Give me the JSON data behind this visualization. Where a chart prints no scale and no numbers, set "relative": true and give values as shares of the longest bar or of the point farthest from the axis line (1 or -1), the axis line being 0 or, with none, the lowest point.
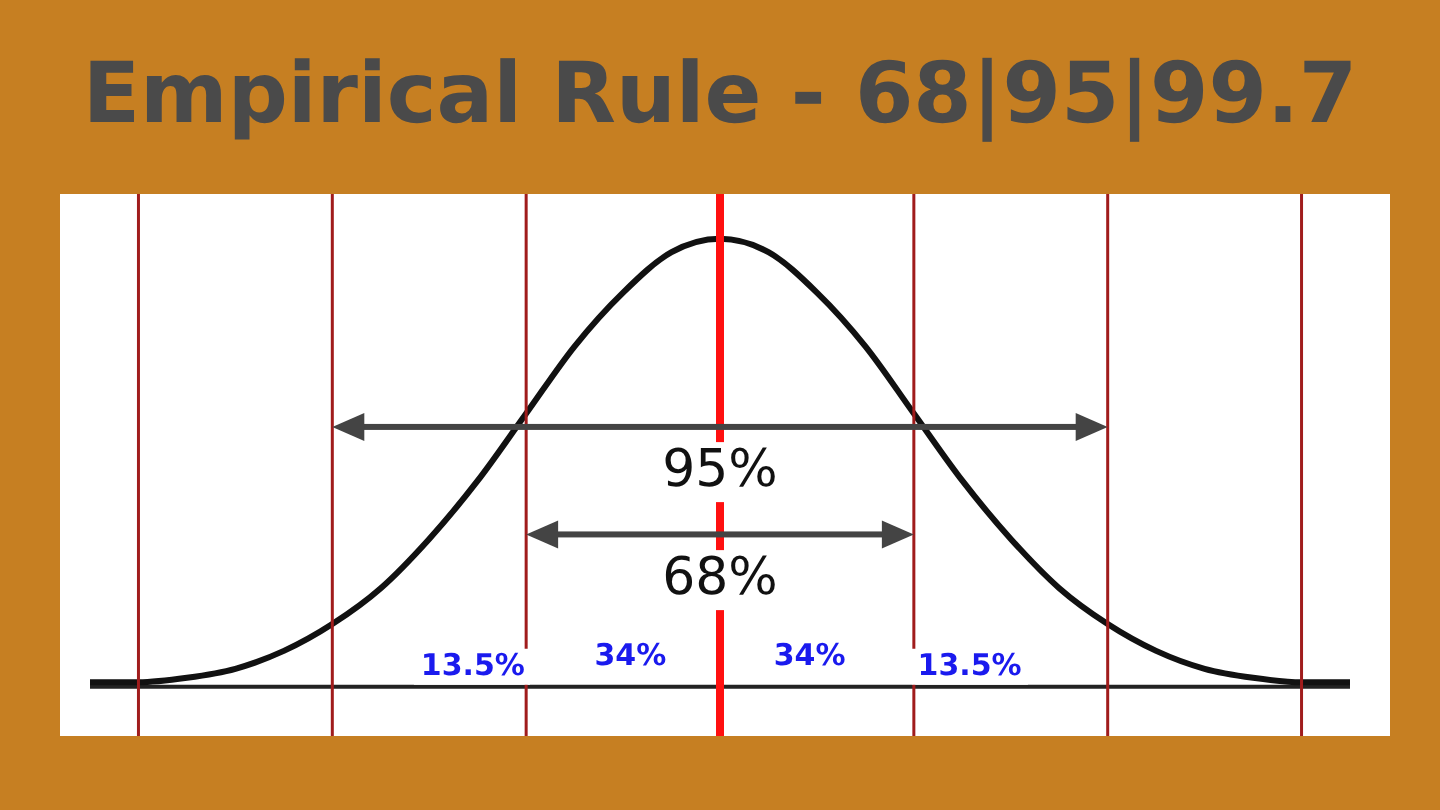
{
  "chart_data": {
    "type": "line",
    "title": "Empirical Rule - 68|95|99.7",
    "relative": true,
    "legend": false,
    "tick_labels": false,
    "marker": "none",
    "line_style": "solid",
    "categories": [
      null,
      null,
      null,
      null,
      null,
      null,
      null,
      null,
      null,
      null,
      null,
      null,
      null,
      null,
      null,
      null,
      null,
      null,
      null,
      null,
      null,
      null,
      null,
      null,
      null,
      null,
      null
    ],
    "series": [
      {
        "color": "#111111",
        "values": [
          0.01,
          0.01,
          0.02,
          0.04,
          0.08,
          0.14,
          0.22,
          0.33,
          0.46,
          0.61,
          0.76,
          0.88,
          0.97,
          1,
          0.97,
          0.88,
          0.76,
          0.61,
          0.46,
          0.33,
          0.22,
          0.14,
          0.08,
          0.04,
          0.02,
          0.01,
          0.01
        ]
      }
    ],
    "annotations": [
      "95%",
      "68%",
      "13.5%",
      "34%",
      "34%",
      "13.5%"
    ]
  }
}
